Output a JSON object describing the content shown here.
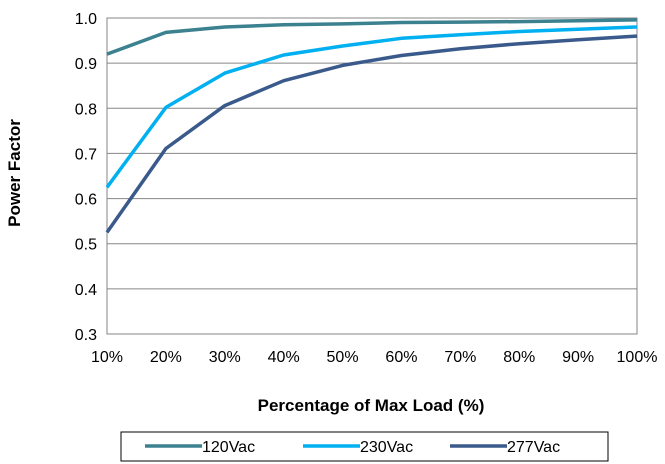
{
  "chart_data": {
    "type": "line",
    "title": "",
    "xlabel": "Percentage of Max Load (%)",
    "ylabel": "Power Factor",
    "x": [
      "10%",
      "20%",
      "30%",
      "40%",
      "50%",
      "60%",
      "70%",
      "80%",
      "90%",
      "100%"
    ],
    "y_ticks": [
      "0.3",
      "0.4",
      "0.5",
      "0.6",
      "0.7",
      "0.8",
      "0.9",
      "1.0"
    ],
    "ylim": [
      0.3,
      1.0
    ],
    "grid": true,
    "legend_position": "bottom",
    "series": [
      {
        "name": "120Vac",
        "color": "#3b8190",
        "values": [
          0.92,
          0.968,
          0.98,
          0.985,
          0.987,
          0.99,
          0.991,
          0.992,
          0.994,
          0.996
        ]
      },
      {
        "name": "230Vac",
        "color": "#00b0f0",
        "values": [
          0.625,
          0.802,
          0.878,
          0.918,
          0.938,
          0.955,
          0.963,
          0.97,
          0.975,
          0.98
        ]
      },
      {
        "name": "277Vac",
        "color": "#3a5a8c",
        "values": [
          0.525,
          0.711,
          0.806,
          0.861,
          0.895,
          0.917,
          0.932,
          0.943,
          0.952,
          0.96
        ]
      }
    ]
  }
}
